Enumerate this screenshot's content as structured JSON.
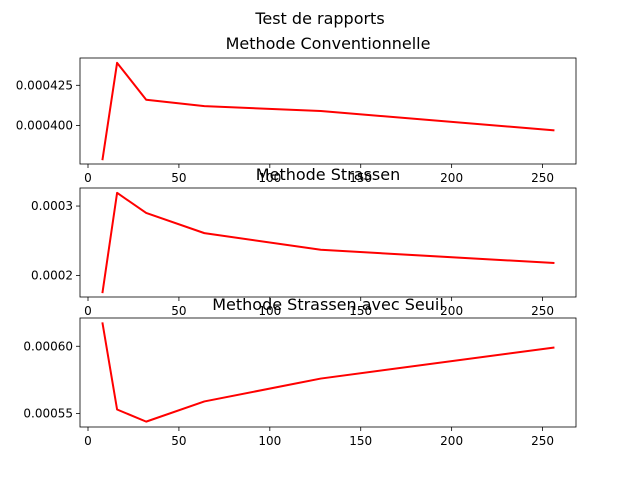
{
  "figure": {
    "suptitle": "Test de rapports"
  },
  "chart_data": [
    {
      "type": "line",
      "title": "Methode Conventionnelle",
      "xlabel": "",
      "ylabel": "",
      "series": [
        {
          "color": "#ff0000",
          "x": [
            8,
            16,
            32,
            64,
            128,
            256
          ],
          "y": [
            0.000379,
            0.000439,
            0.000416,
            0.000412,
            0.000409,
            0.000397
          ]
        }
      ],
      "xlim": [
        -4.4,
        268.4
      ],
      "ylim": [
        0.000376,
        0.000442
      ],
      "xticks": [
        0,
        50,
        100,
        150,
        200,
        250
      ],
      "xtick_labels": [
        "0",
        "50",
        "100",
        "150",
        "200",
        "250"
      ],
      "yticks": [
        0.0004,
        0.000425
      ],
      "ytick_labels": [
        "0.000400",
        "0.000425"
      ],
      "grid": false
    },
    {
      "type": "line",
      "title": "Methode Strassen",
      "xlabel": "",
      "ylabel": "",
      "series": [
        {
          "color": "#ff0000",
          "x": [
            8,
            16,
            32,
            64,
            128,
            256
          ],
          "y": [
            0.000176,
            0.000319,
            0.00029,
            0.000261,
            0.000237,
            0.000218
          ]
        }
      ],
      "xlim": [
        -4.4,
        268.4
      ],
      "ylim": [
        0.000169,
        0.000326
      ],
      "xticks": [
        0,
        50,
        100,
        150,
        200,
        250
      ],
      "xtick_labels": [
        "0",
        "50",
        "100",
        "150",
        "200",
        "250"
      ],
      "yticks": [
        0.0002,
        0.0003
      ],
      "ytick_labels": [
        "0.0002",
        "0.0003"
      ],
      "grid": false
    },
    {
      "type": "line",
      "title": "Methode Strassen avec Seuil",
      "xlabel": "",
      "ylabel": "",
      "series": [
        {
          "color": "#ff0000",
          "x": [
            8,
            16,
            32,
            64,
            128,
            256
          ],
          "y": [
            0.000617,
            0.000553,
            0.000544,
            0.000559,
            0.000576,
            0.000599
          ]
        }
      ],
      "xlim": [
        -4.4,
        268.4
      ],
      "ylim": [
        0.00054,
        0.000621
      ],
      "xticks": [
        0,
        50,
        100,
        150,
        200,
        250
      ],
      "xtick_labels": [
        "0",
        "50",
        "100",
        "150",
        "200",
        "250"
      ],
      "yticks": [
        0.00055,
        0.0006
      ],
      "ytick_labels": [
        "0.00055",
        "0.00060"
      ],
      "grid": false
    }
  ]
}
